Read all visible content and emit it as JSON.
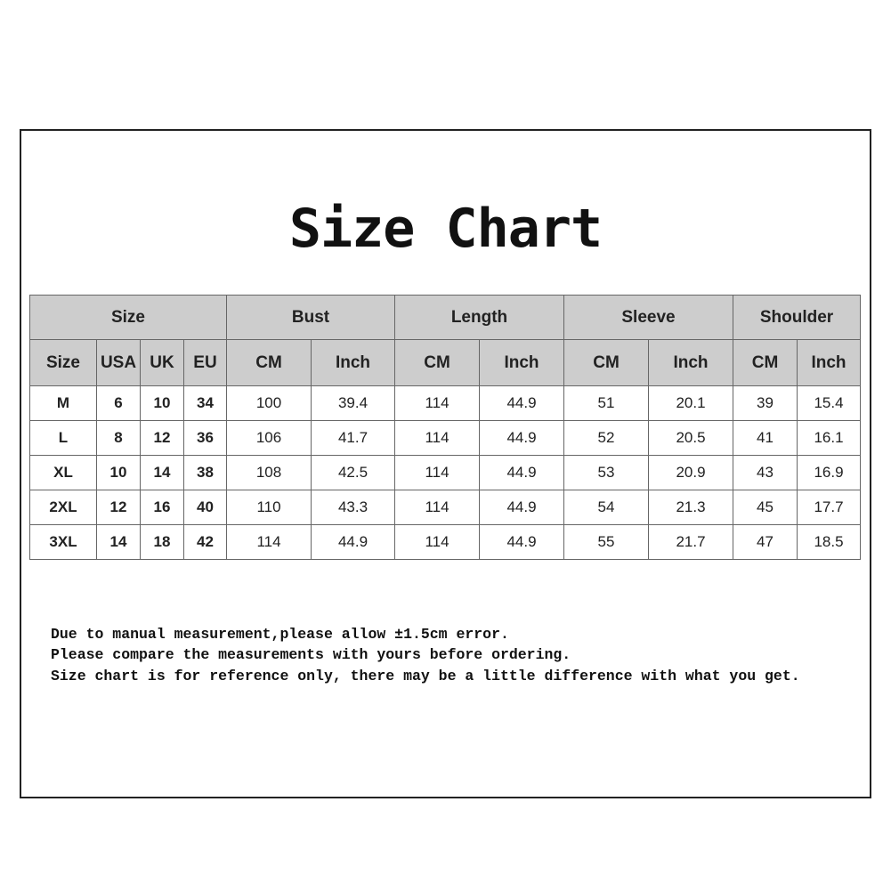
{
  "title": "Size Chart",
  "table": {
    "groups": [
      "Size",
      "Bust",
      "Length",
      "Sleeve",
      "Shoulder"
    ],
    "subheaders": [
      "Size",
      "USA",
      "UK",
      "EU",
      "CM",
      "Inch",
      "CM",
      "Inch",
      "CM",
      "Inch",
      "CM",
      "Inch"
    ],
    "rows": [
      [
        "M",
        "6",
        "10",
        "34",
        "100",
        "39.4",
        "114",
        "44.9",
        "51",
        "20.1",
        "39",
        "15.4"
      ],
      [
        "L",
        "8",
        "12",
        "36",
        "106",
        "41.7",
        "114",
        "44.9",
        "52",
        "20.5",
        "41",
        "16.1"
      ],
      [
        "XL",
        "10",
        "14",
        "38",
        "108",
        "42.5",
        "114",
        "44.9",
        "53",
        "20.9",
        "43",
        "16.9"
      ],
      [
        "2XL",
        "12",
        "16",
        "40",
        "110",
        "43.3",
        "114",
        "44.9",
        "54",
        "21.3",
        "45",
        "17.7"
      ],
      [
        "3XL",
        "14",
        "18",
        "42",
        "114",
        "44.9",
        "114",
        "44.9",
        "55",
        "21.7",
        "47",
        "18.5"
      ]
    ]
  },
  "notes": [
    "Due to manual measurement,please allow ±1.5cm error.",
    "Please compare the measurements with yours before ordering.",
    "Size chart is for reference only, there may be a little difference with what you get."
  ]
}
